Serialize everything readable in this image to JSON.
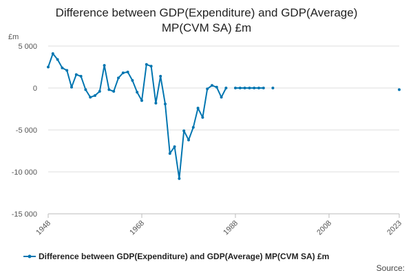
{
  "chart_data": {
    "type": "line",
    "title": "Difference between GDP(Expenditure) and GDP(Average) MP(CVM SA) £m",
    "title_lines": [
      "Difference between GDP(Expenditure) and GDP(Average)",
      "MP(CVM SA) £m"
    ],
    "unit": "£m",
    "ylim": [
      -15000,
      5000
    ],
    "xlim": [
      1948,
      2023
    ],
    "y_ticks": [
      5000,
      0,
      -5000,
      -10000,
      -15000
    ],
    "y_tick_labels": [
      "5 000",
      "0",
      "-5 000",
      "-10 000",
      "-15 000"
    ],
    "x_ticks": [
      1948,
      1968,
      1988,
      2008,
      2023
    ],
    "x_tick_labels": [
      "1948",
      "1968",
      "1988",
      "2008",
      "2023"
    ],
    "series": [
      {
        "name": "Difference between GDP(Expenditure) and GDP(Average) MP(CVM SA) £m",
        "color": "#0075b0",
        "x": [
          1948,
          1949,
          1950,
          1951,
          1952,
          1953,
          1954,
          1955,
          1956,
          1957,
          1958,
          1959,
          1960,
          1961,
          1962,
          1963,
          1964,
          1965,
          1966,
          1967,
          1968,
          1969,
          1970,
          1971,
          1972,
          1973,
          1974,
          1975,
          1976,
          1977,
          1978,
          1979,
          1980,
          1981,
          1982,
          1983,
          1984,
          1985,
          1986,
          1987,
          1988,
          1989,
          1990,
          1991,
          1992,
          1993,
          1994,
          1995,
          1996,
          1997,
          2023
        ],
        "values": [
          2500,
          4100,
          3400,
          2400,
          2100,
          100,
          1600,
          1400,
          -200,
          -1100,
          -900,
          -400,
          2700,
          -200,
          -400,
          1200,
          1800,
          1900,
          900,
          -500,
          -1500,
          2800,
          2600,
          -1800,
          1400,
          -1900,
          -7800,
          -7000,
          -10800,
          -5100,
          -6200,
          -4700,
          -2400,
          -3500,
          -100,
          300,
          100,
          -1100,
          0,
          null,
          0,
          0,
          0,
          0,
          0,
          0,
          0,
          null,
          0,
          null,
          -200
        ]
      }
    ],
    "legend": "Difference between GDP(Expenditure) and GDP(Average) MP(CVM SA) £m",
    "source_label": "Source:"
  }
}
